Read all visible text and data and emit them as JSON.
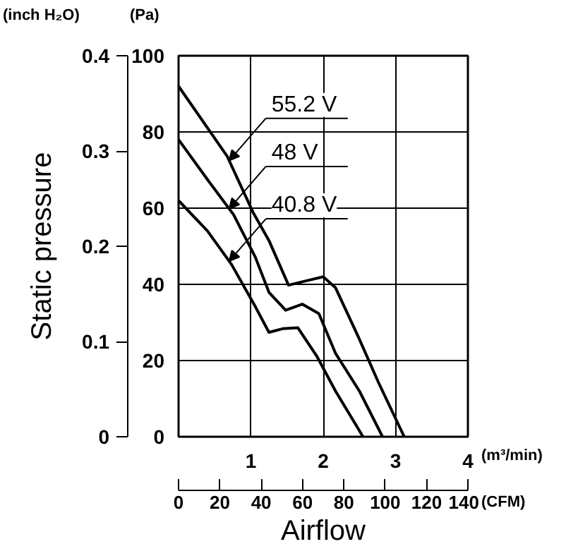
{
  "chart_data": {
    "type": "line",
    "x2label": "Airflow",
    "y2label": "Static pressure",
    "xlim": [
      0,
      4
    ],
    "xticks": [
      1,
      2,
      3,
      4
    ],
    "ylim": [
      0,
      100
    ],
    "yticks": [
      0,
      20,
      40,
      60,
      80,
      100
    ],
    "y2lim": [
      0,
      0.4
    ],
    "y2ticks": [
      0,
      0.1,
      0.2,
      0.3,
      0.4
    ],
    "x2lim": [
      0,
      140
    ],
    "x2ticks": [
      0,
      20,
      40,
      60,
      80,
      100,
      120,
      140
    ],
    "grid": true,
    "legend": "top",
    "marker": "none",
    "line_style": "solid",
    "series": [
      {
        "name": "55.2 V",
        "color": "#000000",
        "x": [
          0,
          0.67,
          1.03,
          1.25,
          1.52,
          1.78,
          2.0,
          2.17,
          2.5,
          2.76,
          3.12
        ],
        "values": [
          92,
          73.7,
          58.9,
          51.5,
          39.8,
          41,
          42,
          39.1,
          25.6,
          14.4,
          0
        ]
      },
      {
        "name": "48 V",
        "color": "#000000",
        "x": [
          0,
          0.4,
          0.76,
          1.06,
          1.25,
          1.48,
          1.71,
          1.94,
          2.17,
          2.5,
          2.82
        ],
        "values": [
          78,
          67.5,
          58.3,
          47.2,
          37.9,
          33.2,
          34.8,
          32.3,
          21.9,
          12,
          0
        ]
      },
      {
        "name": "40.8 V",
        "color": "#000000",
        "x": [
          0,
          0.4,
          0.73,
          1.06,
          1.25,
          1.45,
          1.65,
          1.91,
          2.17,
          2.55
        ],
        "values": [
          62,
          54,
          45.3,
          34.2,
          27.4,
          28.4,
          28.6,
          21.2,
          12,
          0
        ]
      }
    ],
    "annotations": [
      "(Pa)",
      "(inch H₂O)",
      "(m³/min)",
      "(CFM)"
    ]
  }
}
